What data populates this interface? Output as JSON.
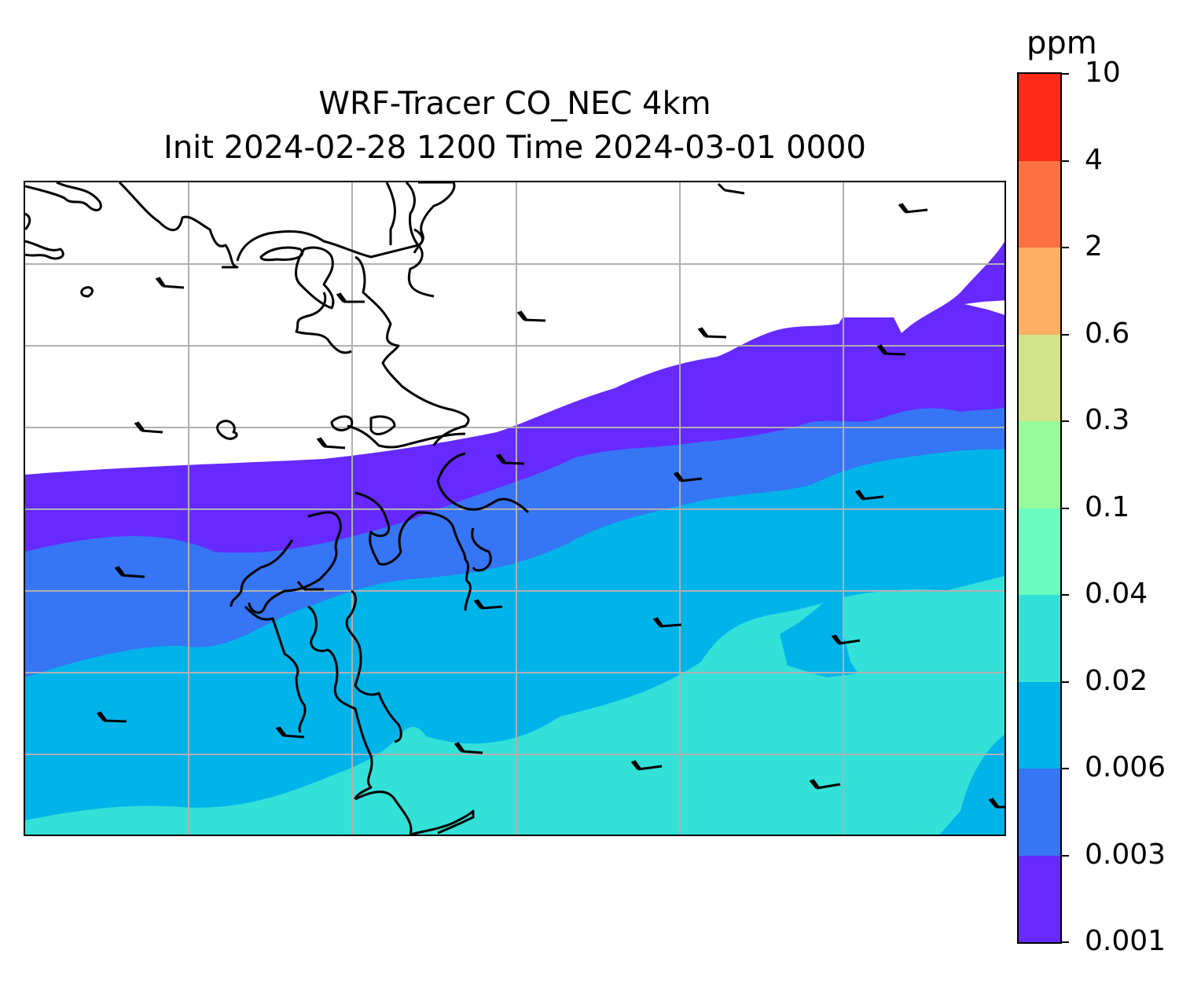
{
  "title": {
    "line1": "WRF-Tracer CO_NEC 4km",
    "line2": "Init 2024-02-28 1200 Time 2024-03-01 0000"
  },
  "colorbar": {
    "units": "ppm",
    "levels": [
      "0.001",
      "0.003",
      "0.006",
      "0.02",
      "0.04",
      "0.1",
      "0.3",
      "0.6",
      "2",
      "4",
      "10"
    ],
    "colors": [
      "#6629ff",
      "#3675f4",
      "#00b4ea",
      "#33e1d8",
      "#6cfcbf",
      "#98fb9b",
      "#d2e38a",
      "#fdb064",
      "#ff7040",
      "#ff2a18"
    ]
  },
  "map": {
    "gridlines": true,
    "coastline": true,
    "wind_barbs": true
  }
}
